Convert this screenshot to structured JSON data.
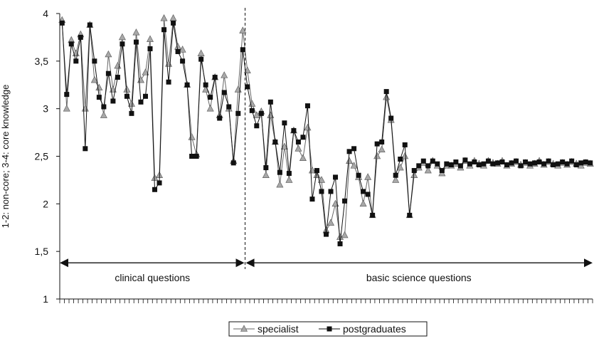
{
  "chart_data": {
    "type": "line",
    "title": "",
    "xlabel": "",
    "ylabel": "1-2: non-core; 3-4: core knowledge",
    "ylim": [
      1,
      4
    ],
    "yticks": [
      "1",
      "1,5",
      "2",
      "2,5",
      "3",
      "3,5",
      "4"
    ],
    "ytick_values": [
      1,
      1.5,
      2,
      2.5,
      3,
      3.5,
      4
    ],
    "grid": false,
    "legend_position": "bottom-center",
    "x": [
      1,
      2,
      3,
      4,
      5,
      6,
      7,
      8,
      9,
      10,
      11,
      12,
      13,
      14,
      15,
      16,
      17,
      18,
      19,
      20,
      21,
      22,
      23,
      24,
      25,
      26,
      27,
      28,
      29,
      30,
      31,
      32,
      33,
      34,
      35,
      36,
      37,
      38,
      39,
      40,
      41,
      42,
      43,
      44,
      45,
      46,
      47,
      48,
      49,
      50,
      51,
      52,
      53,
      54,
      55,
      56,
      57,
      58,
      59,
      60,
      61,
      62,
      63,
      64,
      65,
      66,
      67,
      68,
      69,
      70,
      71,
      72,
      73,
      74,
      75,
      76,
      77,
      78,
      79,
      80,
      81,
      82,
      83,
      84,
      85,
      86,
      87,
      88,
      89,
      90,
      91,
      92,
      93,
      94,
      95,
      96,
      97,
      98,
      99,
      100,
      101,
      102,
      103,
      104,
      105,
      106,
      107,
      108,
      109,
      110,
      111,
      112,
      113,
      114,
      115
    ],
    "series": [
      {
        "name": "specialist",
        "marker": "triangle",
        "color": "#999999",
        "values": [
          3.93,
          3.0,
          3.72,
          3.58,
          3.78,
          3.0,
          3.88,
          3.3,
          3.22,
          2.93,
          3.57,
          3.2,
          3.45,
          3.75,
          3.2,
          3.05,
          3.8,
          3.3,
          3.38,
          3.73,
          2.27,
          2.3,
          3.95,
          3.47,
          3.95,
          3.65,
          3.62,
          3.25,
          2.7,
          2.52,
          3.58,
          3.2,
          3.0,
          3.33,
          2.93,
          3.35,
          3.0,
          2.45,
          3.2,
          3.82,
          3.4,
          3.05,
          2.93,
          2.97,
          2.3,
          2.93,
          2.65,
          2.2,
          2.6,
          2.25,
          2.77,
          2.58,
          2.48,
          2.8,
          2.35,
          2.3,
          2.25,
          1.72,
          1.8,
          2.0,
          1.65,
          1.67,
          2.45,
          2.4,
          2.28,
          2.0,
          2.28,
          1.88,
          2.5,
          2.57,
          3.12,
          2.88,
          2.25,
          2.38,
          2.5,
          1.88,
          2.3,
          2.38,
          2.43,
          2.35,
          2.45,
          2.4,
          2.32,
          2.4,
          2.4,
          2.42,
          2.38,
          2.45,
          2.4,
          2.45,
          2.42,
          2.4,
          2.45,
          2.43,
          2.42,
          2.45,
          2.4,
          2.42,
          2.44,
          2.41,
          2.43,
          2.4,
          2.42,
          2.45,
          2.41,
          2.44,
          2.42,
          2.4,
          2.43,
          2.41,
          2.44,
          2.42,
          2.4,
          2.43,
          2.42
        ]
      },
      {
        "name": "postgraduates",
        "marker": "square",
        "color": "#1a1a1a",
        "values": [
          3.9,
          3.15,
          3.68,
          3.5,
          3.75,
          2.58,
          3.88,
          3.5,
          3.12,
          3.02,
          3.37,
          3.08,
          3.33,
          3.68,
          3.13,
          2.95,
          3.7,
          3.07,
          3.13,
          3.63,
          2.15,
          2.22,
          3.83,
          3.28,
          3.9,
          3.6,
          3.5,
          3.25,
          2.5,
          2.5,
          3.52,
          3.25,
          3.12,
          3.33,
          2.9,
          3.17,
          3.02,
          2.43,
          2.95,
          3.62,
          3.23,
          2.98,
          2.82,
          2.95,
          2.38,
          3.07,
          2.65,
          2.33,
          2.85,
          2.32,
          2.77,
          2.65,
          2.7,
          3.03,
          2.05,
          2.35,
          2.13,
          1.68,
          2.13,
          2.28,
          1.58,
          2.03,
          2.55,
          2.58,
          2.3,
          2.13,
          2.1,
          1.88,
          2.63,
          2.65,
          3.18,
          2.9,
          2.3,
          2.47,
          2.62,
          1.88,
          2.35,
          2.4,
          2.45,
          2.4,
          2.45,
          2.42,
          2.35,
          2.42,
          2.41,
          2.44,
          2.4,
          2.46,
          2.42,
          2.44,
          2.41,
          2.42,
          2.45,
          2.42,
          2.43,
          2.44,
          2.41,
          2.43,
          2.45,
          2.4,
          2.44,
          2.42,
          2.43,
          2.44,
          2.42,
          2.45,
          2.41,
          2.42,
          2.44,
          2.42,
          2.45,
          2.41,
          2.43,
          2.44,
          2.43
        ]
      }
    ],
    "divider_after_x": 40,
    "annotations": [
      {
        "text": "clinical questions",
        "y": 1.38
      },
      {
        "text": "basic science questions",
        "y": 1.38
      }
    ]
  }
}
